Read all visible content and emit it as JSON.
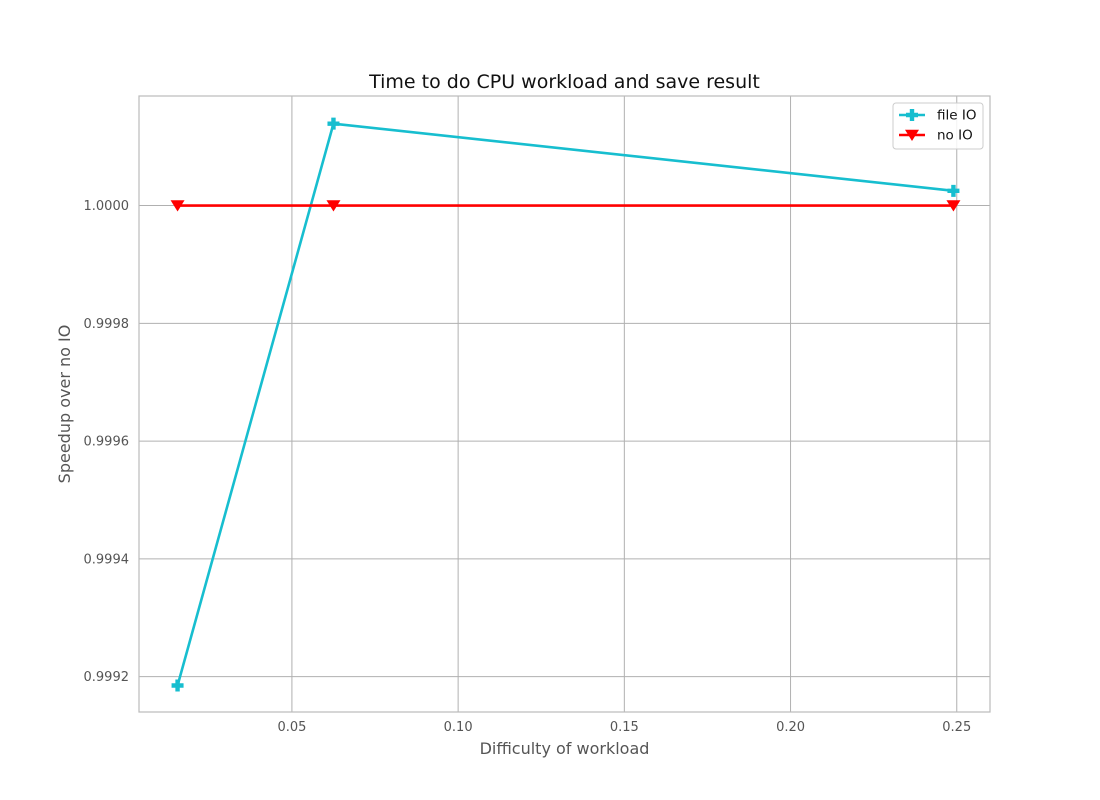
{
  "chart_data": {
    "type": "line",
    "title": "Time to do CPU workload and save result",
    "xlabel": "Difficulty of workload",
    "ylabel": "Speedup over no IO",
    "xlim": [
      0.004,
      0.26
    ],
    "ylim": [
      0.99914,
      1.000186
    ],
    "x_ticks": [
      0.05,
      0.1,
      0.15,
      0.2,
      0.25
    ],
    "x_tick_labels": [
      "0.05",
      "0.10",
      "0.15",
      "0.20",
      "0.25"
    ],
    "y_ticks": [
      0.9992,
      0.9994,
      0.9996,
      0.9998,
      1.0
    ],
    "y_tick_labels": [
      "0.9992",
      "0.9994",
      "0.9996",
      "0.9998",
      "1.0000"
    ],
    "grid": true,
    "legend_position": "top-right",
    "series": [
      {
        "name": "file IO",
        "color": "#17becf",
        "marker": "plus",
        "x": [
          0.0156,
          0.0625,
          0.249
        ],
        "y": [
          0.999185,
          1.000139,
          1.000025
        ]
      },
      {
        "name": "no IO",
        "color": "#ff0000",
        "marker": "triangle-down",
        "x": [
          0.0156,
          0.0625,
          0.249
        ],
        "y": [
          1.0,
          1.0,
          1.0
        ]
      }
    ]
  }
}
